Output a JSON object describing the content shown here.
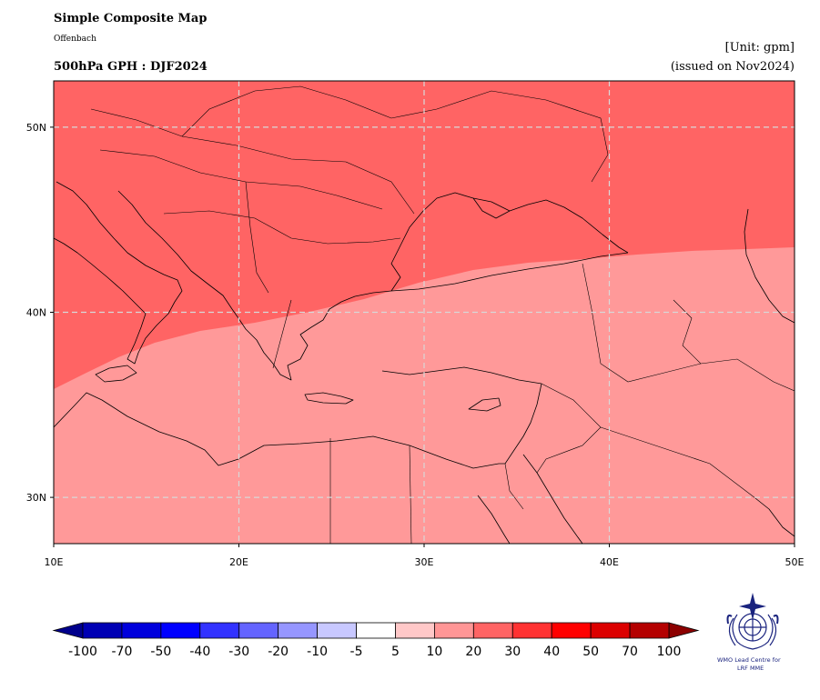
{
  "header": {
    "title": "Simple Composite Map",
    "subtitle": "Offenbach",
    "variable_label": "500hPa GPH : DJF2024",
    "unit": "[Unit: gpm]",
    "issued": "(issued on Nov2024)"
  },
  "map": {
    "lon_range": [
      10,
      50
    ],
    "lat_range": [
      27.5,
      52.5
    ],
    "lon_ticks": [
      "10E",
      "20E",
      "30E",
      "40E",
      "50E"
    ],
    "lat_ticks": [
      "30N",
      "40N",
      "50N"
    ],
    "gridlines": true,
    "fill_regions": [
      {
        "range": "20 to 30",
        "color": "#ff6464"
      },
      {
        "range": "10 to 20",
        "color": "#ff9999"
      }
    ]
  },
  "colorbar": {
    "labels": [
      "-100",
      "-70",
      "-50",
      "-40",
      "-30",
      "-20",
      "-10",
      "-5",
      "5",
      "10",
      "20",
      "30",
      "40",
      "50",
      "70",
      "100"
    ],
    "colors": [
      "#0000b4",
      "#0000dc",
      "#0000ff",
      "#3232ff",
      "#6464ff",
      "#9696ff",
      "#c8c8ff",
      "#ffffff",
      "#ffc8c8",
      "#ff9696",
      "#ff6464",
      "#ff3232",
      "#ff0000",
      "#dc0000",
      "#b40000"
    ],
    "under_color": "#00008c",
    "over_color": "#8c0000"
  },
  "logo": {
    "line1": "WMO Lead Centre for",
    "line2": "LRF MME"
  }
}
